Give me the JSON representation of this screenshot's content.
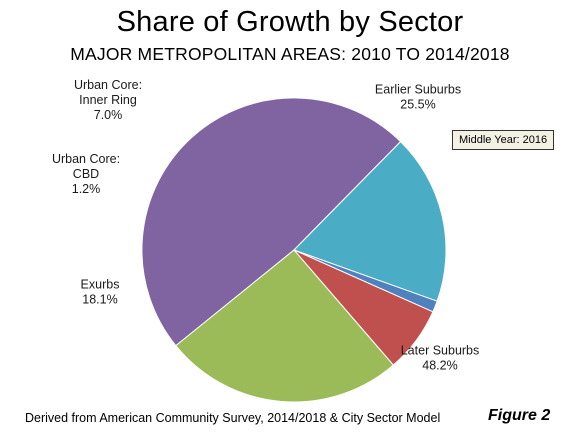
{
  "chart_data": {
    "type": "pie",
    "title": "Share of Growth by Sector",
    "subtitle": "MAJOR METROPOLITAN AREAS: 2010 TO 2014/2018",
    "start_angle_deg": 141,
    "slices": [
      {
        "name": [
          "Later Suburbs"
        ],
        "value": 48.2,
        "value_label": "48.2%",
        "color": "#8064a2"
      },
      {
        "name": [
          "Exurbs"
        ],
        "value": 18.1,
        "value_label": "18.1%",
        "color": "#4bacc6"
      },
      {
        "name": [
          "Urban Core:",
          "CBD"
        ],
        "value": 1.2,
        "value_label": "1.2%",
        "color": "#4f81bd"
      },
      {
        "name": [
          "Urban Core:",
          "Inner Ring"
        ],
        "value": 7.0,
        "value_label": "7.0%",
        "color": "#c0504d"
      },
      {
        "name": [
          "Earlier Suburbs"
        ],
        "value": 25.5,
        "value_label": "25.5%",
        "color": "#9bbb59"
      }
    ],
    "annotation": "Middle Year: 2016"
  },
  "footer": {
    "source": "Derived from American Community Survey, 2014/2018 & City Sector Model",
    "figure": "Figure 2"
  }
}
